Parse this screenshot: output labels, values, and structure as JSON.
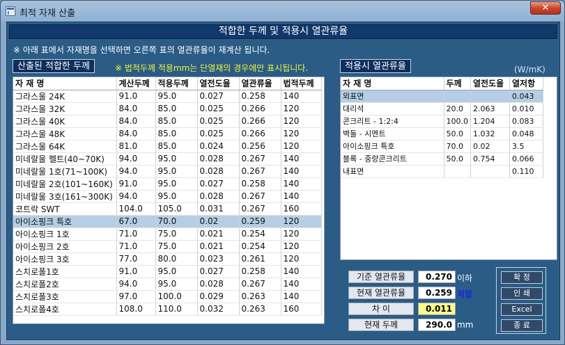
{
  "window": {
    "title": "최적 자재 산출",
    "close_glyph": "✕"
  },
  "header": {
    "title": "적합한 두께 및 적용시 열관류율"
  },
  "instruction": "※ 아래 표에서 자재명을 선택하면 오른쪽 표의 열관류율이 재계산 됩니다.",
  "left_section": {
    "label": "산출된 적합한 두께",
    "note": "※ 법적두께 적용mm는 단열재의 경우에만 표시됩니다."
  },
  "right_section": {
    "label": "적용시 열관류율",
    "unit": "(W/mK)"
  },
  "main_table": {
    "headers": [
      "자 재 명",
      "계산두께",
      "적용두께",
      "열전도율",
      "열관류율",
      "법적두께"
    ],
    "selected_index": 10,
    "rows": [
      [
        "그라스울 24K",
        "91.0",
        "95.0",
        "0.027",
        "0.258",
        "140"
      ],
      [
        "그라스울 32K",
        "84.0",
        "85.0",
        "0.025",
        "0.266",
        "120"
      ],
      [
        "그라스울 40K",
        "84.0",
        "85.0",
        "0.025",
        "0.266",
        "120"
      ],
      [
        "그라스울 48K",
        "84.0",
        "85.0",
        "0.025",
        "0.266",
        "120"
      ],
      [
        "그라스울 64K",
        "81.0",
        "85.0",
        "0.024",
        "0.256",
        "120"
      ],
      [
        "미네랄울 펠트(40~70K)",
        "94.0",
        "95.0",
        "0.028",
        "0.267",
        "140"
      ],
      [
        "미네랄울 1호(71~100K)",
        "94.0",
        "95.0",
        "0.028",
        "0.267",
        "140"
      ],
      [
        "미네랄울 2호(101~160K)",
        "91.0",
        "95.0",
        "0.027",
        "0.258",
        "140"
      ],
      [
        "미네랄울 3호(161~300K)",
        "94.0",
        "95.0",
        "0.028",
        "0.267",
        "140"
      ],
      [
        "코트락 SWT",
        "104.0",
        "105.0",
        "0.031",
        "0.267",
        "160"
      ],
      [
        "아이소핑크 특호",
        "67.0",
        "70.0",
        "0.02",
        "0.259",
        "120"
      ],
      [
        "아이소핑크 1호",
        "71.0",
        "75.0",
        "0.021",
        "0.254",
        "120"
      ],
      [
        "아이소핑크 2호",
        "71.0",
        "75.0",
        "0.021",
        "0.254",
        "120"
      ],
      [
        "아이소핑크 3호",
        "77.0",
        "80.0",
        "0.023",
        "0.261",
        "120"
      ],
      [
        "스치로폴1호",
        "91.0",
        "95.0",
        "0.027",
        "0.258",
        "140"
      ],
      [
        "스치로폴2호",
        "94.0",
        "95.0",
        "0.028",
        "0.267",
        "140"
      ],
      [
        "스치로폴3호",
        "97.0",
        "100.0",
        "0.029",
        "0.263",
        "140"
      ],
      [
        "스치로폴4호",
        "108.0",
        "110.0",
        "0.032",
        "0.263",
        "160"
      ]
    ]
  },
  "side_table": {
    "headers": [
      "자 재 명",
      "두께",
      "열전도율",
      "열저항"
    ],
    "selected_index": 0,
    "rows": [
      [
        "외표면",
        "",
        "",
        "0.043"
      ],
      [
        "대리석",
        "20.0",
        "2.063",
        "0.010"
      ],
      [
        "콘크리트 - 1:2:4",
        "100.0",
        "1.204",
        "0.083"
      ],
      [
        "벽돌 - 시멘트",
        "50.0",
        "1.032",
        "0.048"
      ],
      [
        "아이소핑크 특호",
        "70.0",
        "0.02",
        "3.5"
      ],
      [
        "블록 - 중량콘크리트",
        "50.0",
        "0.754",
        "0.066"
      ],
      [
        "내표면",
        "",
        "",
        "0.110"
      ]
    ]
  },
  "summary": {
    "base_label": "기준 열관류율",
    "base_value": "0.270",
    "base_suffix": "이하",
    "current_label": "현재 열관류율",
    "current_value": "0.259",
    "current_suffix": "적합",
    "diff_label": "차   이",
    "diff_value": "0.011",
    "thickness_label": "현재 두께",
    "thickness_value": "290.0",
    "thickness_suffix": "mm"
  },
  "buttons": {
    "confirm": "확  정",
    "print": "인  쇄",
    "excel": "Excel",
    "exit": "종  료"
  },
  "colors": {
    "client_bg": "#2a5c86",
    "header_bg": "#11386a",
    "selected_row": "#b6cde6",
    "note_yellow": "#f2f23c",
    "diff_highlight": "#fafa8c",
    "ok_text": "#1b24e0"
  }
}
